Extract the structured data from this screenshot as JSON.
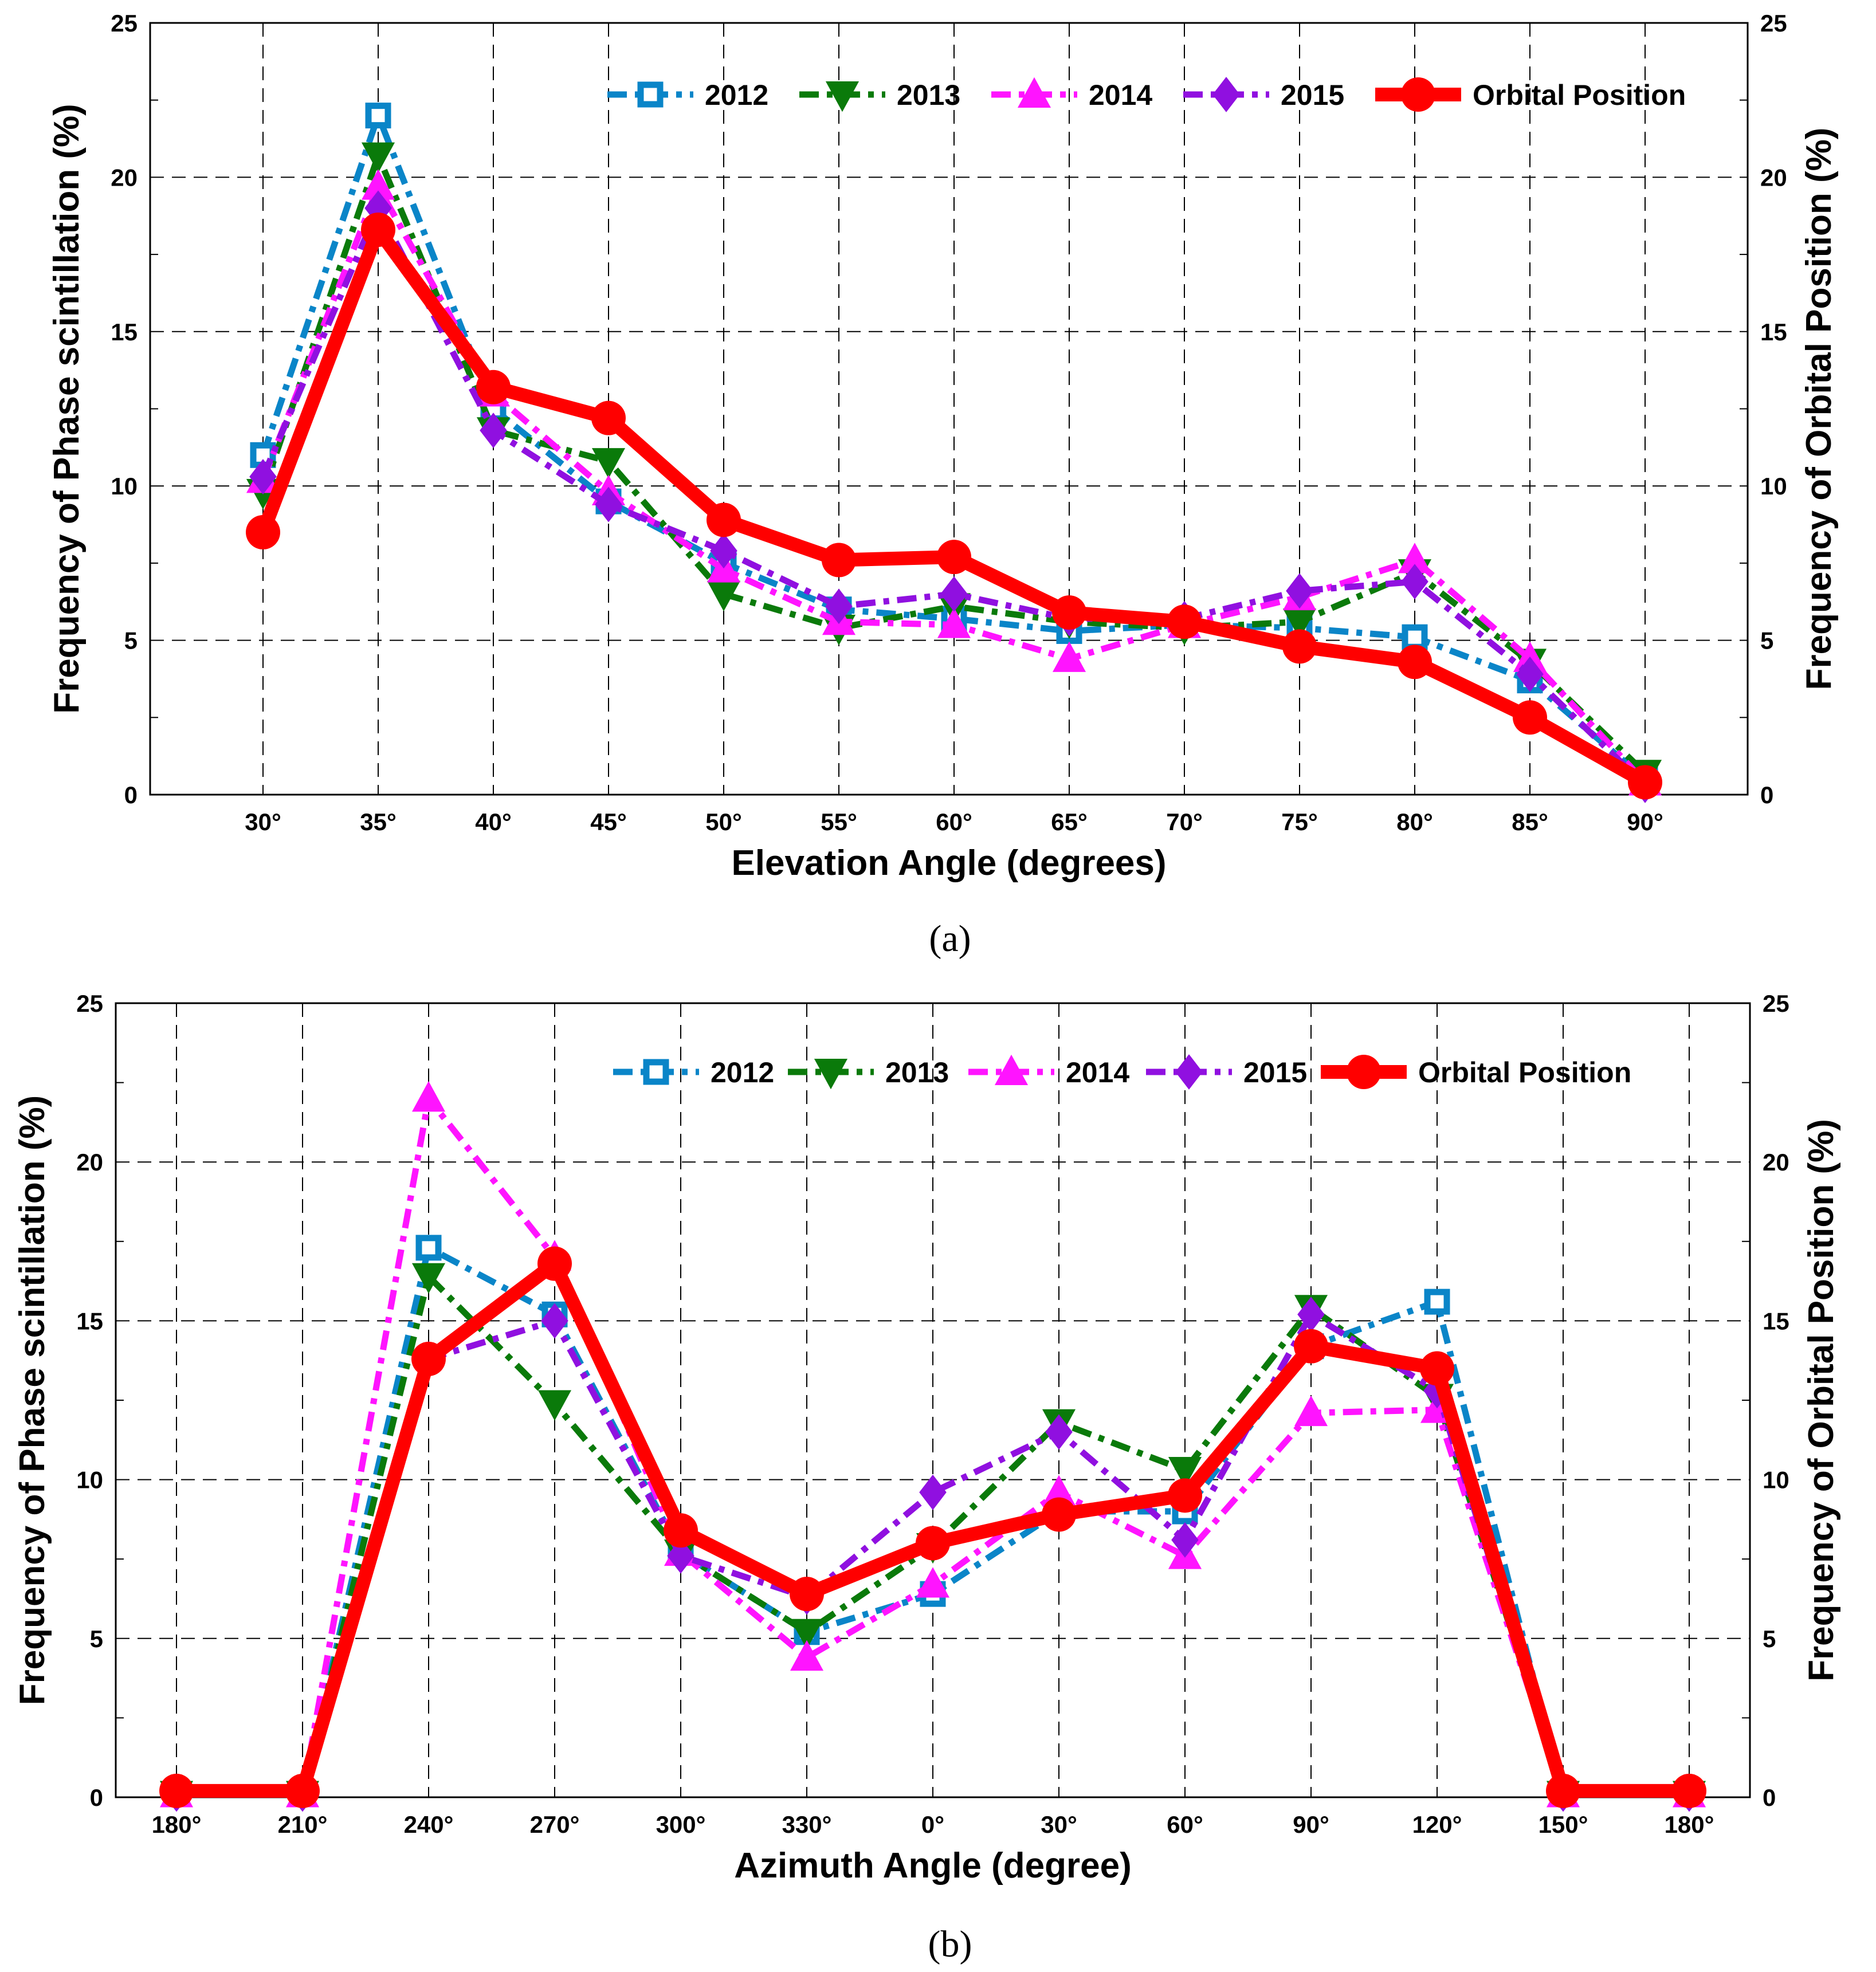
{
  "chart_data": [
    {
      "type": "line",
      "caption": "(a)",
      "xlabel": "Elevation Angle (degrees)",
      "ylabel": "Frequency of Phase scintillation (%)",
      "y2label": "Frequency of Orbital Position (%)",
      "ylim": [
        0,
        25
      ],
      "yticks": [
        0,
        5,
        10,
        15,
        20,
        25
      ],
      "grid": true,
      "legend": "top-right",
      "categories": [
        "30°",
        "35°",
        "40°",
        "45°",
        "50°",
        "55°",
        "60°",
        "65°",
        "70°",
        "75°",
        "80°",
        "85°",
        "90°"
      ],
      "series": [
        {
          "name": "2012",
          "color": "#0a85c8",
          "marker": "square",
          "values": [
            11,
            22,
            12.5,
            9.5,
            7.5,
            6,
            5.7,
            5.3,
            5.5,
            5.4,
            5.1,
            3.7,
            0.5
          ]
        },
        {
          "name": "2013",
          "color": "#0a7a0a",
          "marker": "triangle-down",
          "values": [
            9.8,
            20.7,
            11.8,
            10.8,
            6.5,
            5.4,
            6.1,
            5.6,
            5.4,
            5.6,
            7.2,
            4.3,
            0.7
          ]
        },
        {
          "name": "2014",
          "color": "#ff14ff",
          "marker": "triangle-up",
          "values": [
            10.2,
            19.7,
            13,
            9.8,
            7.3,
            5.6,
            5.5,
            4.4,
            5.5,
            6.4,
            7.6,
            4.4,
            0.4
          ]
        },
        {
          "name": "2015",
          "color": "#9010e0",
          "marker": "diamond",
          "values": [
            10.3,
            19,
            11.8,
            9.4,
            7.9,
            6.1,
            6.5,
            5.7,
            5.7,
            6.6,
            6.9,
            3.9,
            0.3
          ]
        },
        {
          "name": "Orbital Position",
          "color": "#ff0000",
          "marker": "circle",
          "values": [
            8.5,
            18.3,
            13.2,
            12.2,
            8.9,
            7.6,
            7.7,
            5.9,
            5.6,
            4.8,
            4.3,
            2.5,
            0.4
          ]
        }
      ]
    },
    {
      "type": "line",
      "caption": "(b)",
      "xlabel": "Azimuth Angle (degree)",
      "ylabel": "Frequency of Phase scintillation (%)",
      "y2label": "Frequency of Orbital Position (%)",
      "ylim": [
        0,
        25
      ],
      "yticks": [
        0,
        5,
        10,
        15,
        20,
        25
      ],
      "grid": true,
      "legend": "top-right",
      "categories": [
        "180°",
        "210°",
        "240°",
        "270°",
        "300°",
        "330°",
        "0°",
        "30°",
        "60°",
        "90°",
        "120°",
        "150°",
        "180°"
      ],
      "series": [
        {
          "name": "2012",
          "color": "#0a85c8",
          "marker": "square",
          "values": [
            0.1,
            0.1,
            17.3,
            15.2,
            7.7,
            5.2,
            6.4,
            9,
            9,
            14.2,
            15.6,
            0.1,
            0.1
          ]
        },
        {
          "name": "2013",
          "color": "#0a7a0a",
          "marker": "triangle-down",
          "values": [
            0.1,
            0.1,
            16.4,
            12.4,
            7.7,
            5.2,
            7.9,
            11.8,
            10.3,
            15.4,
            12.6,
            0.1,
            0.1
          ]
        },
        {
          "name": "2014",
          "color": "#ff14ff",
          "marker": "triangle-up",
          "values": [
            0.1,
            0.1,
            22,
            17,
            7.7,
            4.4,
            6.7,
            9.6,
            7.6,
            12.1,
            12.2,
            0.1,
            0.1
          ]
        },
        {
          "name": "2015",
          "color": "#9010e0",
          "marker": "diamond",
          "values": [
            0.1,
            0.1,
            13.8,
            15,
            7.6,
            6.3,
            9.6,
            11.5,
            8.1,
            15.2,
            12.8,
            0.1,
            0.1
          ]
        },
        {
          "name": "Orbital Position",
          "color": "#ff0000",
          "marker": "circle",
          "values": [
            0.2,
            0.2,
            13.8,
            16.8,
            8.4,
            6.4,
            8,
            8.9,
            9.5,
            14.2,
            13.5,
            0.2,
            0.2
          ]
        }
      ]
    }
  ]
}
